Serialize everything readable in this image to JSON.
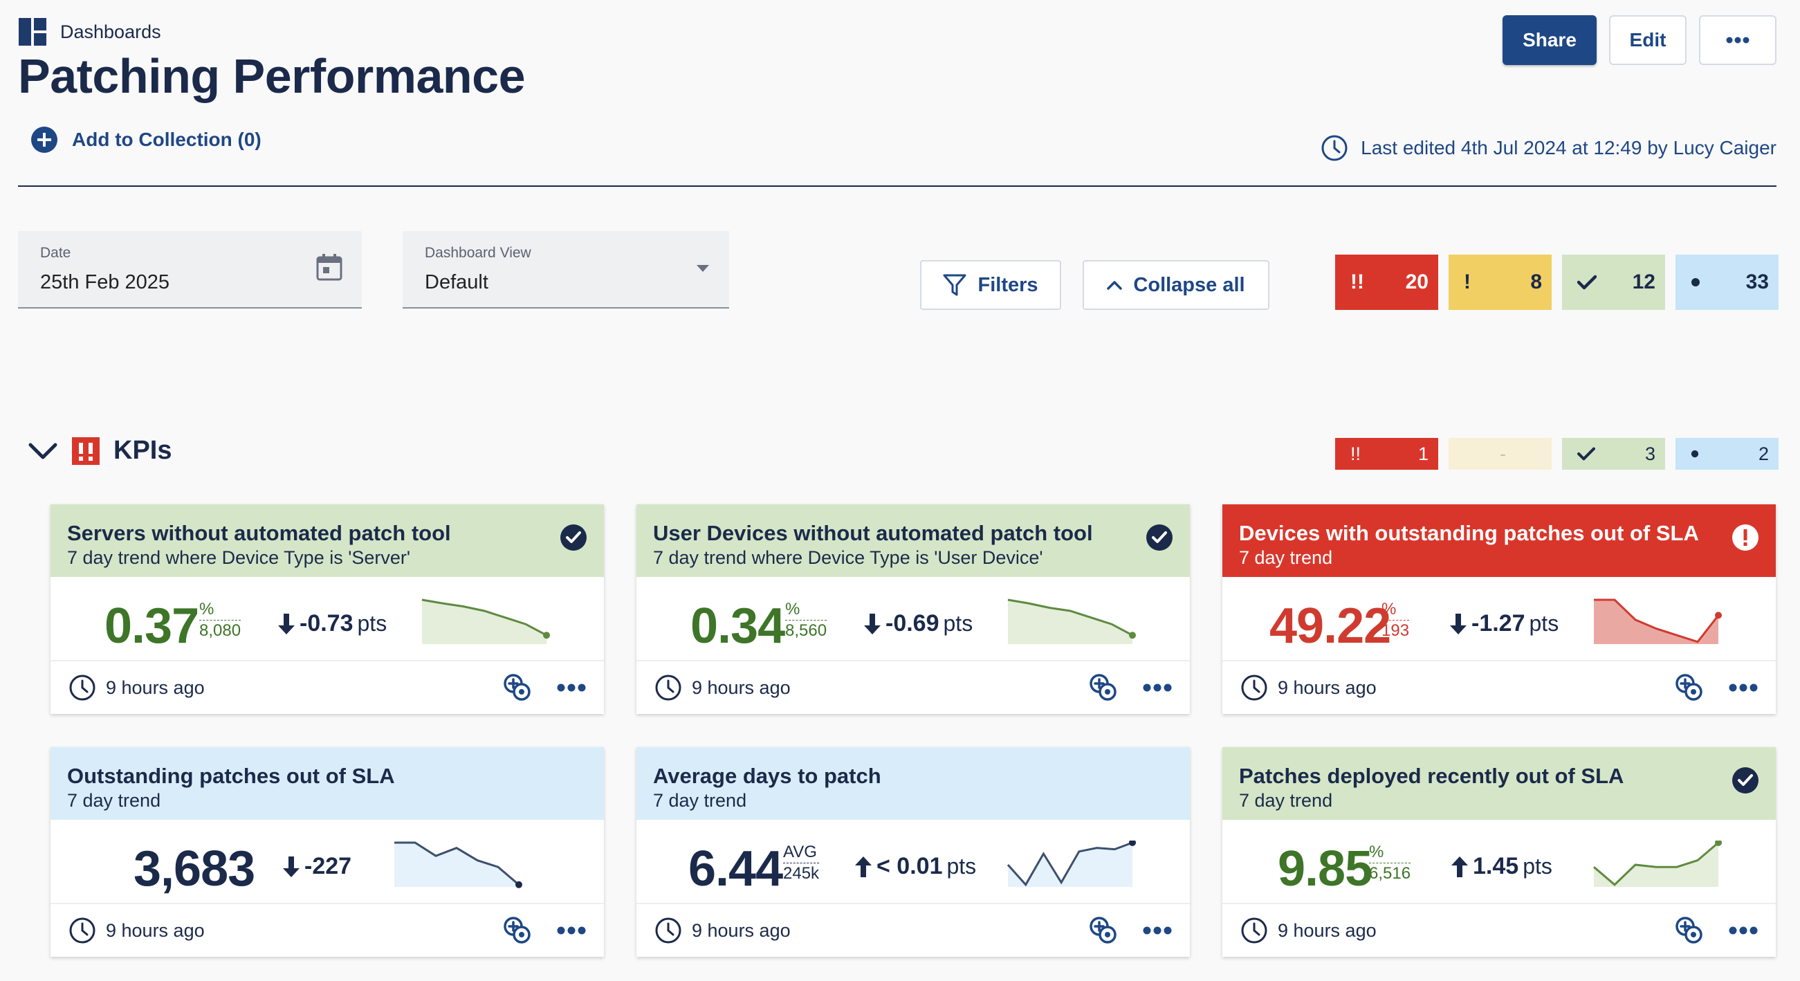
{
  "header": {
    "breadcrumb": "Dashboards",
    "title": "Patching Performance",
    "share_label": "Share",
    "edit_label": "Edit",
    "more_label": "•••",
    "add_collection": "Add to Collection (0)",
    "last_edited": "Last edited 4th Jul 2024 at 12:49 by Lucy Caiger"
  },
  "controls": {
    "date": {
      "label": "Date",
      "value": "25th Feb 2025"
    },
    "dashboard_view": {
      "label": "Dashboard View",
      "value": "Default"
    },
    "filters_label": "Filters",
    "collapse_label": "Collapse all"
  },
  "status_summary": {
    "critical": {
      "icon": "!!",
      "count": "20"
    },
    "warning": {
      "icon": "!",
      "count": "8"
    },
    "ok": {
      "count": "12"
    },
    "info": {
      "count": "33"
    }
  },
  "section": {
    "title": "KPIs",
    "critical": "1",
    "warning": "-",
    "ok": "3",
    "info": "2"
  },
  "colors": {
    "green_head": "#d5e6c8",
    "blue_head": "#d8edf9",
    "red_head": "#d9362b",
    "green_value": "#3e7528",
    "red_value": "#cf3b2f",
    "navy": "#1b2a4a",
    "accent": "#1e4785"
  },
  "cards": [
    {
      "title": "Servers without automated patch tool",
      "subtitle": "7 day trend where Device Type is 'Server'",
      "status": "ok",
      "value": "0.37",
      "unit_top": "%",
      "unit_bottom": "8,080",
      "delta": "-0.73",
      "delta_unit": "pts",
      "delta_direction": "down",
      "trend": [
        1.0,
        0.92,
        0.85,
        0.75,
        0.6,
        0.45,
        0.2
      ],
      "updated": "9 hours ago"
    },
    {
      "title": "User Devices without automated patch tool",
      "subtitle": "7 day trend where Device Type is 'User Device'",
      "status": "ok",
      "value": "0.34",
      "unit_top": "%",
      "unit_bottom": "8,560",
      "delta": "-0.69",
      "delta_unit": "pts",
      "delta_direction": "down",
      "trend": [
        1.0,
        0.92,
        0.82,
        0.75,
        0.6,
        0.45,
        0.2
      ],
      "updated": "9 hours ago"
    },
    {
      "title": "Devices with outstanding patches out of SLA",
      "subtitle": "7 day trend",
      "status": "critical",
      "value": "49.22",
      "unit_top": "%",
      "unit_bottom": "193",
      "delta": "-1.27",
      "delta_unit": "pts",
      "delta_direction": "down",
      "trend": [
        1.0,
        1.0,
        0.55,
        0.35,
        0.2,
        0.05,
        0.65
      ],
      "updated": "9 hours ago"
    },
    {
      "title": "Outstanding patches out of SLA",
      "subtitle": "7 day trend",
      "status": "info",
      "value": "3,683",
      "unit_top": "",
      "unit_bottom": "",
      "delta": "-227",
      "delta_unit": "",
      "delta_direction": "down",
      "trend": [
        1.0,
        1.0,
        0.7,
        0.88,
        0.6,
        0.45,
        0.05
      ],
      "updated": "9 hours ago"
    },
    {
      "title": "Average days to patch",
      "subtitle": "7 day trend",
      "status": "info",
      "value": "6.44",
      "unit_top": "AVG",
      "unit_bottom": "245k",
      "delta": "< 0.01",
      "delta_unit": "pts",
      "delta_direction": "up",
      "trend": [
        0.5,
        0.05,
        0.75,
        0.1,
        0.8,
        0.88,
        0.85,
        1.0
      ],
      "updated": "9 hours ago"
    },
    {
      "title": "Patches deployed recently out of SLA",
      "subtitle": "7 day trend",
      "status": "ok",
      "value": "9.85",
      "unit_top": "%",
      "unit_bottom": "6,516",
      "delta": "1.45",
      "delta_unit": "pts",
      "delta_direction": "up",
      "trend": [
        0.45,
        0.05,
        0.5,
        0.45,
        0.45,
        0.6,
        1.0
      ],
      "updated": "9 hours ago"
    }
  ]
}
